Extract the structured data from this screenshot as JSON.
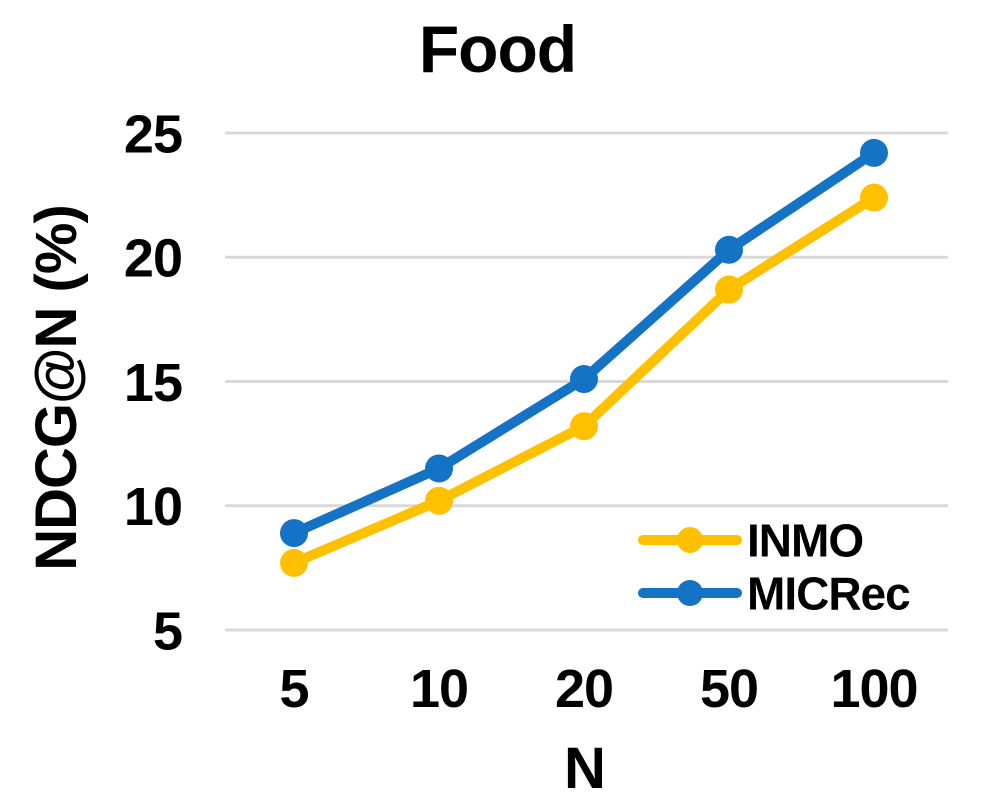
{
  "page": {
    "background": "#FFFFFF"
  },
  "chart_data": {
    "type": "line",
    "title": "Food",
    "xlabel": "N",
    "ylabel": "NDCG@N (%)",
    "categories": [
      "5",
      "10",
      "20",
      "50",
      "100"
    ],
    "y_ticks": [
      5,
      10,
      15,
      20,
      25
    ],
    "ylim": [
      5,
      25.5
    ],
    "grid": true,
    "gridline_color": "#D9D9D9",
    "text_color": "#000000",
    "legend_position": "inside-bottom-right",
    "series": [
      {
        "name": "INMO",
        "color": "#FFC000",
        "values": [
          7.7,
          10.2,
          13.2,
          18.7,
          22.4
        ]
      },
      {
        "name": "MICRec",
        "color": "#1473C5",
        "values": [
          8.9,
          11.5,
          15.1,
          20.3,
          24.2
        ]
      }
    ]
  }
}
